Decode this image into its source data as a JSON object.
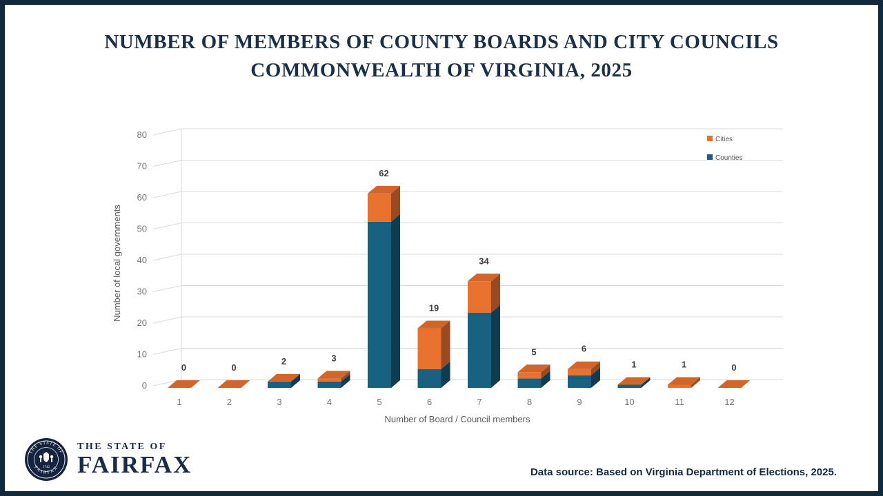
{
  "slide": {
    "title_line1": "NUMBER OF MEMBERS OF COUNTY BOARDS AND CITY COUNCILS",
    "title_line2": "COMMONWEALTH OF VIRGINIA, 2025",
    "border_color": "#12293C",
    "title_color": "#1B2F47"
  },
  "chart_data": {
    "type": "bar",
    "stacked": true,
    "projection": "3d",
    "categories": [
      "1",
      "2",
      "3",
      "4",
      "5",
      "6",
      "7",
      "8",
      "9",
      "10",
      "11",
      "12"
    ],
    "series": [
      {
        "name": "Counties",
        "color": "#17607F",
        "side_color": "#0E3D51",
        "values": [
          0,
          0,
          2,
          2,
          53,
          6,
          24,
          3,
          4,
          1,
          0,
          0
        ]
      },
      {
        "name": "Cities",
        "color": "#E8712E",
        "side_color": "#9A4A20",
        "top_color": "#D0662B",
        "values": [
          0,
          0,
          0,
          1,
          9,
          13,
          10,
          2,
          2,
          0,
          1,
          0
        ]
      }
    ],
    "total_labels": [
      "0",
      "0",
      "2",
      "3",
      "62",
      "19",
      "34",
      "5",
      "6",
      "1",
      "1",
      "0"
    ],
    "xlabel": "Number of Board / Council members",
    "ylabel": "Number of local governments",
    "yticks": [
      0,
      10,
      20,
      30,
      40,
      50,
      60,
      70,
      80
    ],
    "ylim": [
      0,
      80
    ],
    "grid": true,
    "legend": [
      "Cities",
      "Counties"
    ],
    "legend_position": "top-right",
    "colors": {
      "grid": "#D9D9D9",
      "tick": "#757575",
      "axis_title": "#595959",
      "value_label": "#3F3F3F"
    }
  },
  "footer": {
    "seal": {
      "ring_top": "THE STATE OF",
      "ring_bottom": "FAIRFAX",
      "year": "1742"
    },
    "wordmark_top": "THE STATE OF",
    "wordmark_main": "FAIRFAX",
    "datasource": "Data source: Based on Virginia Department of Elections, 2025."
  }
}
